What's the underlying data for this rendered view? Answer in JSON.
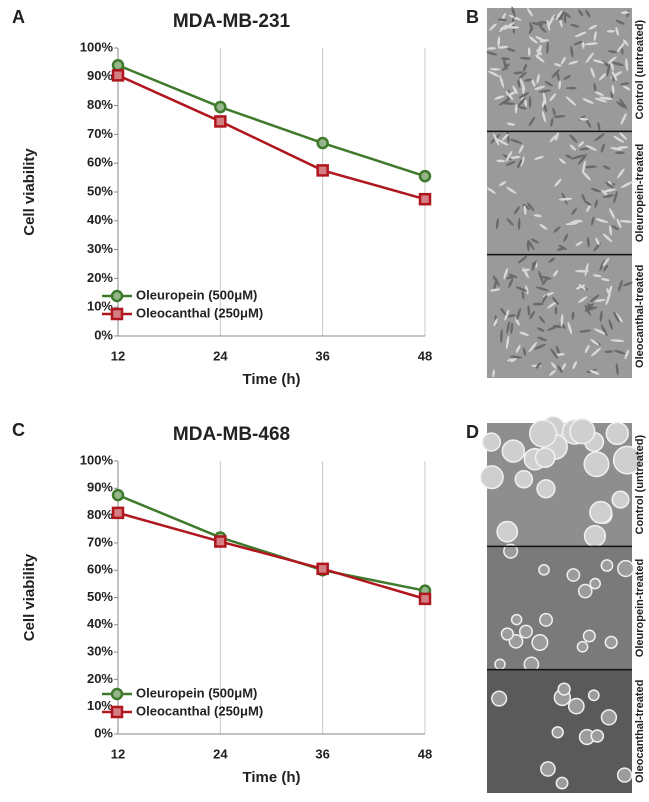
{
  "chart_data": [
    {
      "type": "line",
      "panel_label": "A",
      "title": "MDA-MB-231",
      "x_label": "Time (h)",
      "y_label": "Cell viability",
      "x": [
        12,
        24,
        36,
        48
      ],
      "xlim": [
        12,
        48
      ],
      "xticks": [
        12,
        24,
        36,
        48
      ],
      "ylim": [
        0,
        100
      ],
      "yticks": [
        {
          "value": 0,
          "label": "0%"
        },
        {
          "value": 10,
          "label": "10%"
        },
        {
          "value": 20,
          "label": "20%"
        },
        {
          "value": 30,
          "label": "30%"
        },
        {
          "value": 40,
          "label": "40%"
        },
        {
          "value": 50,
          "label": "50%"
        },
        {
          "value": 60,
          "label": "60%"
        },
        {
          "value": 70,
          "label": "70%"
        },
        {
          "value": 80,
          "label": "80%"
        },
        {
          "value": 90,
          "label": "90%"
        },
        {
          "value": 100,
          "label": "100%"
        }
      ],
      "grid": "x",
      "legend": "lower left",
      "series": [
        {
          "name": "Oleuropein (500μM)",
          "color": "#3f7a2c",
          "marker": "circle",
          "values": [
            94,
            79.5,
            67,
            55.5
          ]
        },
        {
          "name": "Oleocanthal (250μM)",
          "color": "#b0161e",
          "marker": "square",
          "values": [
            90.5,
            74.5,
            57.5,
            47.5
          ]
        }
      ]
    },
    {
      "type": "line",
      "panel_label": "C",
      "title": "MDA-MB-468",
      "x_label": "Time (h)",
      "y_label": "Cell viability",
      "x": [
        12,
        24,
        36,
        48
      ],
      "xlim": [
        12,
        48
      ],
      "xticks": [
        12,
        24,
        36,
        48
      ],
      "ylim": [
        0,
        100
      ],
      "yticks": [
        {
          "value": 0,
          "label": "0%"
        },
        {
          "value": 10,
          "label": "10%"
        },
        {
          "value": 20,
          "label": "20%"
        },
        {
          "value": 30,
          "label": "30%"
        },
        {
          "value": 40,
          "label": "40%"
        },
        {
          "value": 50,
          "label": "50%"
        },
        {
          "value": 60,
          "label": "60%"
        },
        {
          "value": 70,
          "label": "70%"
        },
        {
          "value": 80,
          "label": "80%"
        },
        {
          "value": 90,
          "label": "90%"
        },
        {
          "value": 100,
          "label": "100%"
        }
      ],
      "grid": "x",
      "legend": "lower left",
      "series": [
        {
          "name": "Oleuropein (500μM)",
          "color": "#3f7a2c",
          "marker": "circle",
          "values": [
            87.5,
            72,
            60,
            52.5
          ]
        },
        {
          "name": "Oleocanthal (250μM)",
          "color": "#b0161e",
          "marker": "square",
          "values": [
            81,
            70.5,
            60.5,
            49.5
          ]
        }
      ]
    }
  ],
  "micrographs": [
    {
      "panel_label": "B",
      "labels": [
        "Control (untreated)",
        "Oleuropein-treated",
        "Oleocanthal-treated"
      ]
    },
    {
      "panel_label": "D",
      "labels": [
        "Control (untreated)",
        "Oleuropein-treated",
        "Oleocanthal-treated"
      ]
    }
  ]
}
